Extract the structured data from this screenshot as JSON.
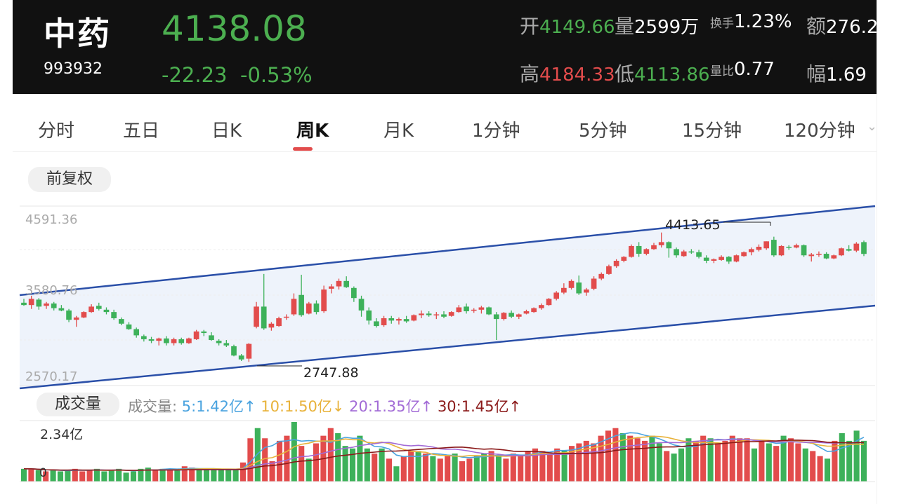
{
  "stock": {
    "name": "中药",
    "code": "993932",
    "price": "4138.08",
    "change": "-22.23",
    "change_pct": "-0.53%"
  },
  "stats": {
    "open_label": "开",
    "open": "4149.66",
    "volume_label": "量",
    "volume": "2599万",
    "turnover_label": "换手",
    "turnover": "1.23%",
    "amount_label": "额",
    "amount": "276.2",
    "high_label": "高",
    "high": "4184.33",
    "low_label": "低",
    "low": "4113.86",
    "ratio_label": "量比",
    "ratio": "0.77",
    "amp_label": "幅",
    "amp": "1.69"
  },
  "tabs": [
    "分时",
    "五日",
    "日K",
    "周K",
    "月K",
    "1分钟",
    "5分钟",
    "15分钟",
    "120分钟"
  ],
  "active_tab": "周K",
  "adjust_label": "前复权",
  "chart_labels": {
    "y_top": "4591.36",
    "y_mid": "3580.76",
    "y_bot": "2570.17",
    "peak": "4413.65",
    "trough": "2747.88"
  },
  "volume_panel": {
    "button": "成交量",
    "label": "成交量:",
    "ma5": "5:1.42亿↑",
    "ma10": "10:1.50亿↓",
    "ma20": "20:1.35亿↑",
    "ma30": "30:1.45亿↑",
    "max_label": "2.34亿",
    "zero_label": "0"
  },
  "colors": {
    "up": "#e24c4c",
    "down": "#3db15a",
    "channel": "#2a4fa8",
    "ma5": "#4aa3df",
    "ma10": "#e8b23a",
    "ma20": "#a26bd6",
    "ma30": "#8b1a1a"
  },
  "chart_data": {
    "type": "candlestick",
    "price_range": [
      2570.17,
      4591.36
    ],
    "max_price": 4413.65,
    "min_price": 2747.88,
    "candles": [
      [
        3510,
        3560,
        3470,
        3480
      ],
      [
        3480,
        3600,
        3430,
        3560
      ],
      [
        3550,
        3570,
        3420,
        3460
      ],
      [
        3470,
        3520,
        3430,
        3500
      ],
      [
        3500,
        3520,
        3410,
        3440
      ],
      [
        3440,
        3480,
        3400,
        3410
      ],
      [
        3410,
        3430,
        3260,
        3290
      ],
      [
        3290,
        3340,
        3200,
        3320
      ],
      [
        3320,
        3400,
        3310,
        3390
      ],
      [
        3390,
        3490,
        3380,
        3460
      ],
      [
        3470,
        3510,
        3410,
        3430
      ],
      [
        3420,
        3450,
        3360,
        3390
      ],
      [
        3390,
        3420,
        3290,
        3310
      ],
      [
        3300,
        3320,
        3220,
        3240
      ],
      [
        3230,
        3260,
        3160,
        3170
      ],
      [
        3170,
        3190,
        3060,
        3090
      ],
      [
        3080,
        3100,
        3010,
        3040
      ],
      [
        3040,
        3070,
        2990,
        3020
      ],
      [
        3020,
        3060,
        2960,
        3050
      ],
      [
        3050,
        3080,
        2960,
        2990
      ],
      [
        2990,
        3060,
        2960,
        3040
      ],
      [
        3040,
        3060,
        2970,
        2990
      ],
      [
        2990,
        3060,
        2980,
        3050
      ],
      [
        3040,
        3160,
        3030,
        3140
      ],
      [
        3140,
        3160,
        3080,
        3120
      ],
      [
        3090,
        3130,
        3020,
        3030
      ],
      [
        3020,
        3040,
        2960,
        2990
      ],
      [
        2990,
        3030,
        2940,
        2960
      ],
      [
        2950,
        2970,
        2820,
        2830
      ],
      [
        2830,
        2850,
        2760,
        2780
      ],
      [
        2790,
        2990,
        2748,
        2980
      ],
      [
        3200,
        3520,
        3180,
        3460
      ],
      [
        3460,
        3880,
        3160,
        3180
      ],
      [
        3190,
        3260,
        3150,
        3240
      ],
      [
        3210,
        3330,
        3200,
        3310
      ],
      [
        3320,
        3360,
        3290,
        3330
      ],
      [
        3360,
        3630,
        3340,
        3560
      ],
      [
        3610,
        3870,
        3330,
        3350
      ],
      [
        3370,
        3520,
        3360,
        3500
      ],
      [
        3500,
        3540,
        3360,
        3390
      ],
      [
        3400,
        3730,
        3380,
        3680
      ],
      [
        3690,
        3750,
        3630,
        3720
      ],
      [
        3720,
        3820,
        3680,
        3790
      ],
      [
        3790,
        3850,
        3700,
        3710
      ],
      [
        3700,
        3720,
        3520,
        3570
      ],
      [
        3560,
        3600,
        3330,
        3410
      ],
      [
        3410,
        3450,
        3230,
        3280
      ],
      [
        3270,
        3310,
        3190,
        3210
      ],
      [
        3220,
        3340,
        3200,
        3310
      ],
      [
        3310,
        3340,
        3240,
        3280
      ],
      [
        3280,
        3320,
        3230,
        3300
      ],
      [
        3300,
        3340,
        3250,
        3270
      ],
      [
        3280,
        3360,
        3270,
        3350
      ],
      [
        3350,
        3410,
        3310,
        3370
      ],
      [
        3370,
        3400,
        3330,
        3350
      ],
      [
        3350,
        3390,
        3300,
        3360
      ],
      [
        3360,
        3400,
        3310,
        3330
      ],
      [
        3340,
        3400,
        3330,
        3390
      ],
      [
        3390,
        3480,
        3380,
        3450
      ],
      [
        3460,
        3500,
        3370,
        3400
      ],
      [
        3410,
        3440,
        3380,
        3420
      ],
      [
        3420,
        3470,
        3370,
        3450
      ],
      [
        3450,
        3460,
        3350,
        3360
      ],
      [
        3360,
        3390,
        3030,
        3300
      ],
      [
        3300,
        3390,
        3280,
        3380
      ],
      [
        3380,
        3410,
        3310,
        3330
      ],
      [
        3330,
        3370,
        3300,
        3360
      ],
      [
        3370,
        3420,
        3360,
        3400
      ],
      [
        3390,
        3450,
        3380,
        3440
      ],
      [
        3440,
        3500,
        3420,
        3480
      ],
      [
        3480,
        3570,
        3470,
        3560
      ],
      [
        3560,
        3660,
        3540,
        3640
      ],
      [
        3640,
        3760,
        3620,
        3700
      ],
      [
        3700,
        3810,
        3680,
        3790
      ],
      [
        3770,
        3860,
        3610,
        3630
      ],
      [
        3640,
        3700,
        3600,
        3680
      ],
      [
        3690,
        3850,
        3670,
        3820
      ],
      [
        3820,
        3900,
        3800,
        3880
      ],
      [
        3880,
        4000,
        3870,
        3980
      ],
      [
        3980,
        4070,
        3960,
        4050
      ],
      [
        4050,
        4110,
        4030,
        4100
      ],
      [
        4100,
        4260,
        4090,
        4240
      ],
      [
        4240,
        4290,
        4100,
        4140
      ],
      [
        4140,
        4210,
        4120,
        4200
      ],
      [
        4200,
        4280,
        4190,
        4250
      ],
      [
        4250,
        4413.65,
        4220,
        4290
      ],
      [
        4290,
        4300,
        4090,
        4210
      ],
      [
        4200,
        4220,
        4090,
        4120
      ],
      [
        4110,
        4190,
        4100,
        4170
      ],
      [
        4170,
        4200,
        4140,
        4160
      ],
      [
        4160,
        4190,
        4080,
        4100
      ],
      [
        4090,
        4120,
        4020,
        4050
      ],
      [
        4050,
        4080,
        4020,
        4070
      ],
      [
        4060,
        4120,
        4050,
        4100
      ],
      [
        4100,
        4110,
        4010,
        4040
      ],
      [
        4040,
        4130,
        4030,
        4120
      ],
      [
        4110,
        4170,
        4100,
        4160
      ],
      [
        4160,
        4220,
        4120,
        4200
      ],
      [
        4190,
        4260,
        4170,
        4230
      ],
      [
        4210,
        4300,
        4190,
        4300
      ],
      [
        4320,
        4360,
        4100,
        4120
      ],
      [
        4120,
        4250,
        4110,
        4240
      ],
      [
        4230,
        4250,
        4190,
        4220
      ],
      [
        4220,
        4270,
        4210,
        4250
      ],
      [
        4250,
        4260,
        4100,
        4120
      ],
      [
        4110,
        4150,
        4040,
        4130
      ],
      [
        4130,
        4170,
        4100,
        4140
      ],
      [
        4140,
        4160,
        4070,
        4080
      ],
      [
        4080,
        4130,
        4070,
        4120
      ],
      [
        4120,
        4220,
        4110,
        4210
      ],
      [
        4200,
        4250,
        4170,
        4180
      ],
      [
        4180,
        4290,
        4160,
        4270
      ],
      [
        4290,
        4310,
        4110,
        4138.08
      ]
    ],
    "volume_max": 2.34,
    "volumes": [
      0.5,
      0.5,
      0.45,
      0.4,
      0.45,
      0.4,
      0.45,
      0.5,
      0.4,
      0.45,
      0.5,
      0.4,
      0.45,
      0.5,
      0.35,
      0.4,
      0.5,
      0.55,
      0.45,
      0.5,
      0.5,
      0.45,
      0.6,
      0.55,
      0.45,
      0.5,
      0.45,
      0.5,
      0.45,
      0.45,
      0.75,
      1.7,
      2.1,
      1.7,
      0.8,
      1.6,
      1.8,
      2.34,
      1.4,
      0.9,
      1.5,
      1.8,
      2.1,
      1.9,
      1.4,
      1.3,
      1.8,
      1.3,
      1.1,
      1.3,
      0.9,
      0.6,
      1.0,
      1.2,
      1.2,
      1.1,
      1.0,
      0.9,
      1.0,
      1.1,
      0.8,
      0.9,
      1.0,
      1.1,
      1.2,
      1.0,
      0.9,
      1.1,
      1.0,
      1.2,
      1.3,
      1.2,
      1.1,
      1.3,
      1.2,
      1.4,
      1.5,
      1.6,
      1.5,
      1.8,
      2.0,
      2.1,
      1.9,
      1.8,
      1.7,
      1.6,
      1.8,
      1.5,
      1.2,
      1.1,
      1.3,
      1.7,
      1.6,
      1.8,
      1.7,
      1.5,
      1.6,
      1.8,
      1.7,
      1.7,
      1.3,
      1.6,
      1.5,
      1.4,
      1.8,
      1.7,
      1.5,
      1.3,
      1.2,
      1.0,
      0.9,
      1.6,
      1.9,
      1.6,
      2.0,
      1.6
    ]
  }
}
